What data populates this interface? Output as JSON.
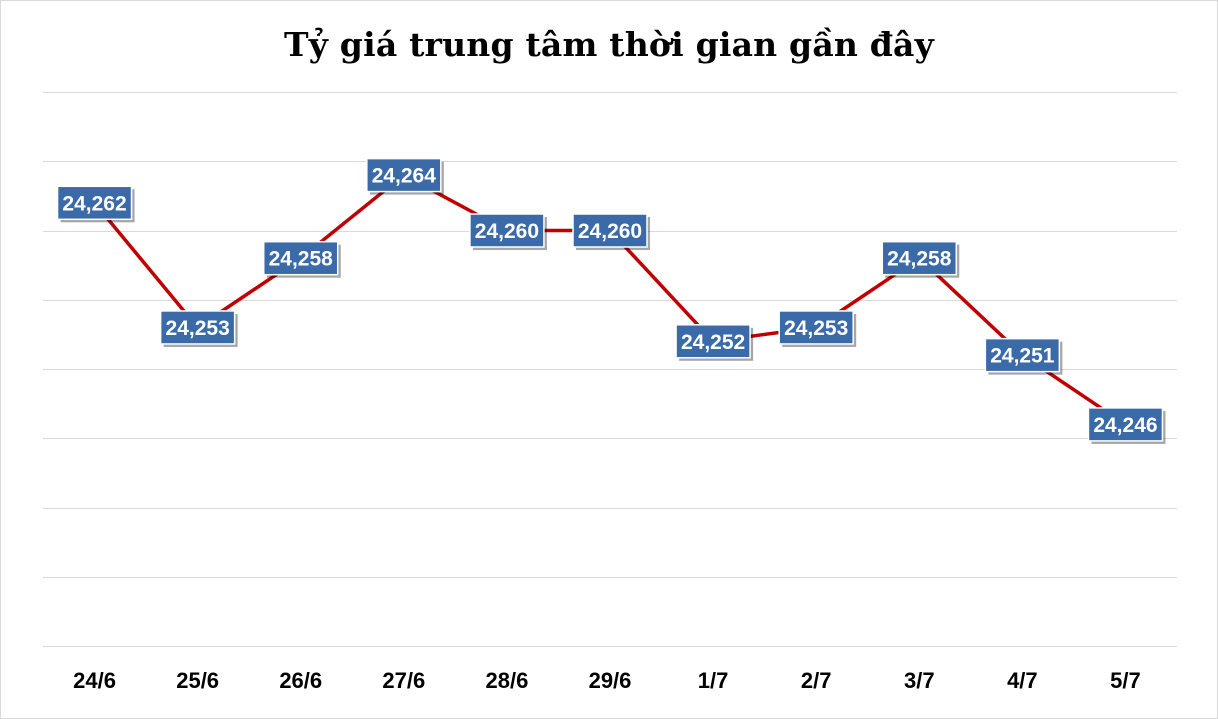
{
  "chart_data": {
    "type": "line",
    "title": "Tỷ giá trung tâm thời gian gần đây",
    "categories": [
      "24/6",
      "25/6",
      "26/6",
      "27/6",
      "28/6",
      "29/6",
      "1/7",
      "2/7",
      "3/7",
      "4/7",
      "5/7"
    ],
    "series": [
      {
        "values": [
          24262,
          24253,
          24258,
          24264,
          24260,
          24260,
          24252,
          24253,
          24258,
          24251,
          24246
        ],
        "labels": [
          "24,262",
          "24,253",
          "24,258",
          "24,264",
          "24,260",
          "24,260",
          "24,252",
          "24,253",
          "24,258",
          "24,251",
          "24,246"
        ],
        "color": "#c00000"
      }
    ],
    "ylim": [
      24230,
      24270
    ],
    "grid": true,
    "legend": "none",
    "colors": {
      "line": "#c00000",
      "label_fill": "#3a6aa8",
      "label_text": "#ffffff",
      "grid": "#d9d9d9"
    }
  }
}
